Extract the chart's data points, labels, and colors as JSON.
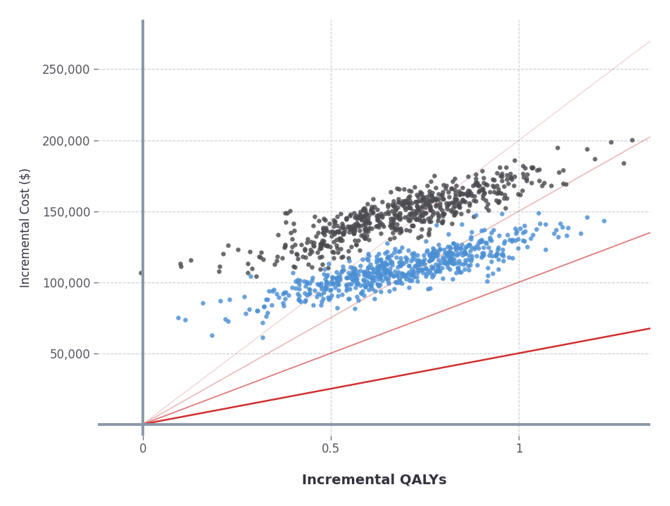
{
  "title": "",
  "xlabel": "Incremental QALYs",
  "ylabel": "Incremental Cost ($)",
  "xlim": [
    -0.12,
    1.35
  ],
  "ylim": [
    -8000,
    285000
  ],
  "background_color": "#ffffff",
  "grid_color": "#c8ccd8",
  "axis_line_color": "#8899aa",
  "scatter_gray_color": "#4a4a50",
  "scatter_blue_color": "#4a8fd4",
  "scatter_alpha": 0.82,
  "scatter_size": 22,
  "wtp_lines": [
    {
      "slope": 50000,
      "color": "#d03030",
      "alpha": 1.0,
      "lw": 1.8
    },
    {
      "slope": 100000,
      "color": "#d04040",
      "alpha": 0.65,
      "lw": 1.4
    },
    {
      "slope": 150000,
      "color": "#d05050",
      "alpha": 0.4,
      "lw": 1.2
    },
    {
      "slope": 200000,
      "color": "#d06060",
      "alpha": 0.25,
      "lw": 1.1
    }
  ],
  "xticks": [
    0.0,
    0.5,
    1.0
  ],
  "yticks": [
    50000,
    100000,
    150000,
    200000,
    250000
  ],
  "xlabel_fontsize": 14,
  "ylabel_fontsize": 12,
  "tick_fontsize": 12,
  "seed_gray": 12,
  "seed_blue": 99,
  "n_gray": 600,
  "n_blue": 600,
  "gray_qaly_mean": 0.7,
  "gray_qaly_std": 0.19,
  "gray_cost_intercept": 96000,
  "gray_cost_slope": 75000,
  "gray_cost_noise": 8000,
  "blue_qaly_mean": 0.68,
  "blue_qaly_std": 0.19,
  "blue_cost_intercept": 68000,
  "blue_cost_slope": 60000,
  "blue_cost_noise": 7000
}
